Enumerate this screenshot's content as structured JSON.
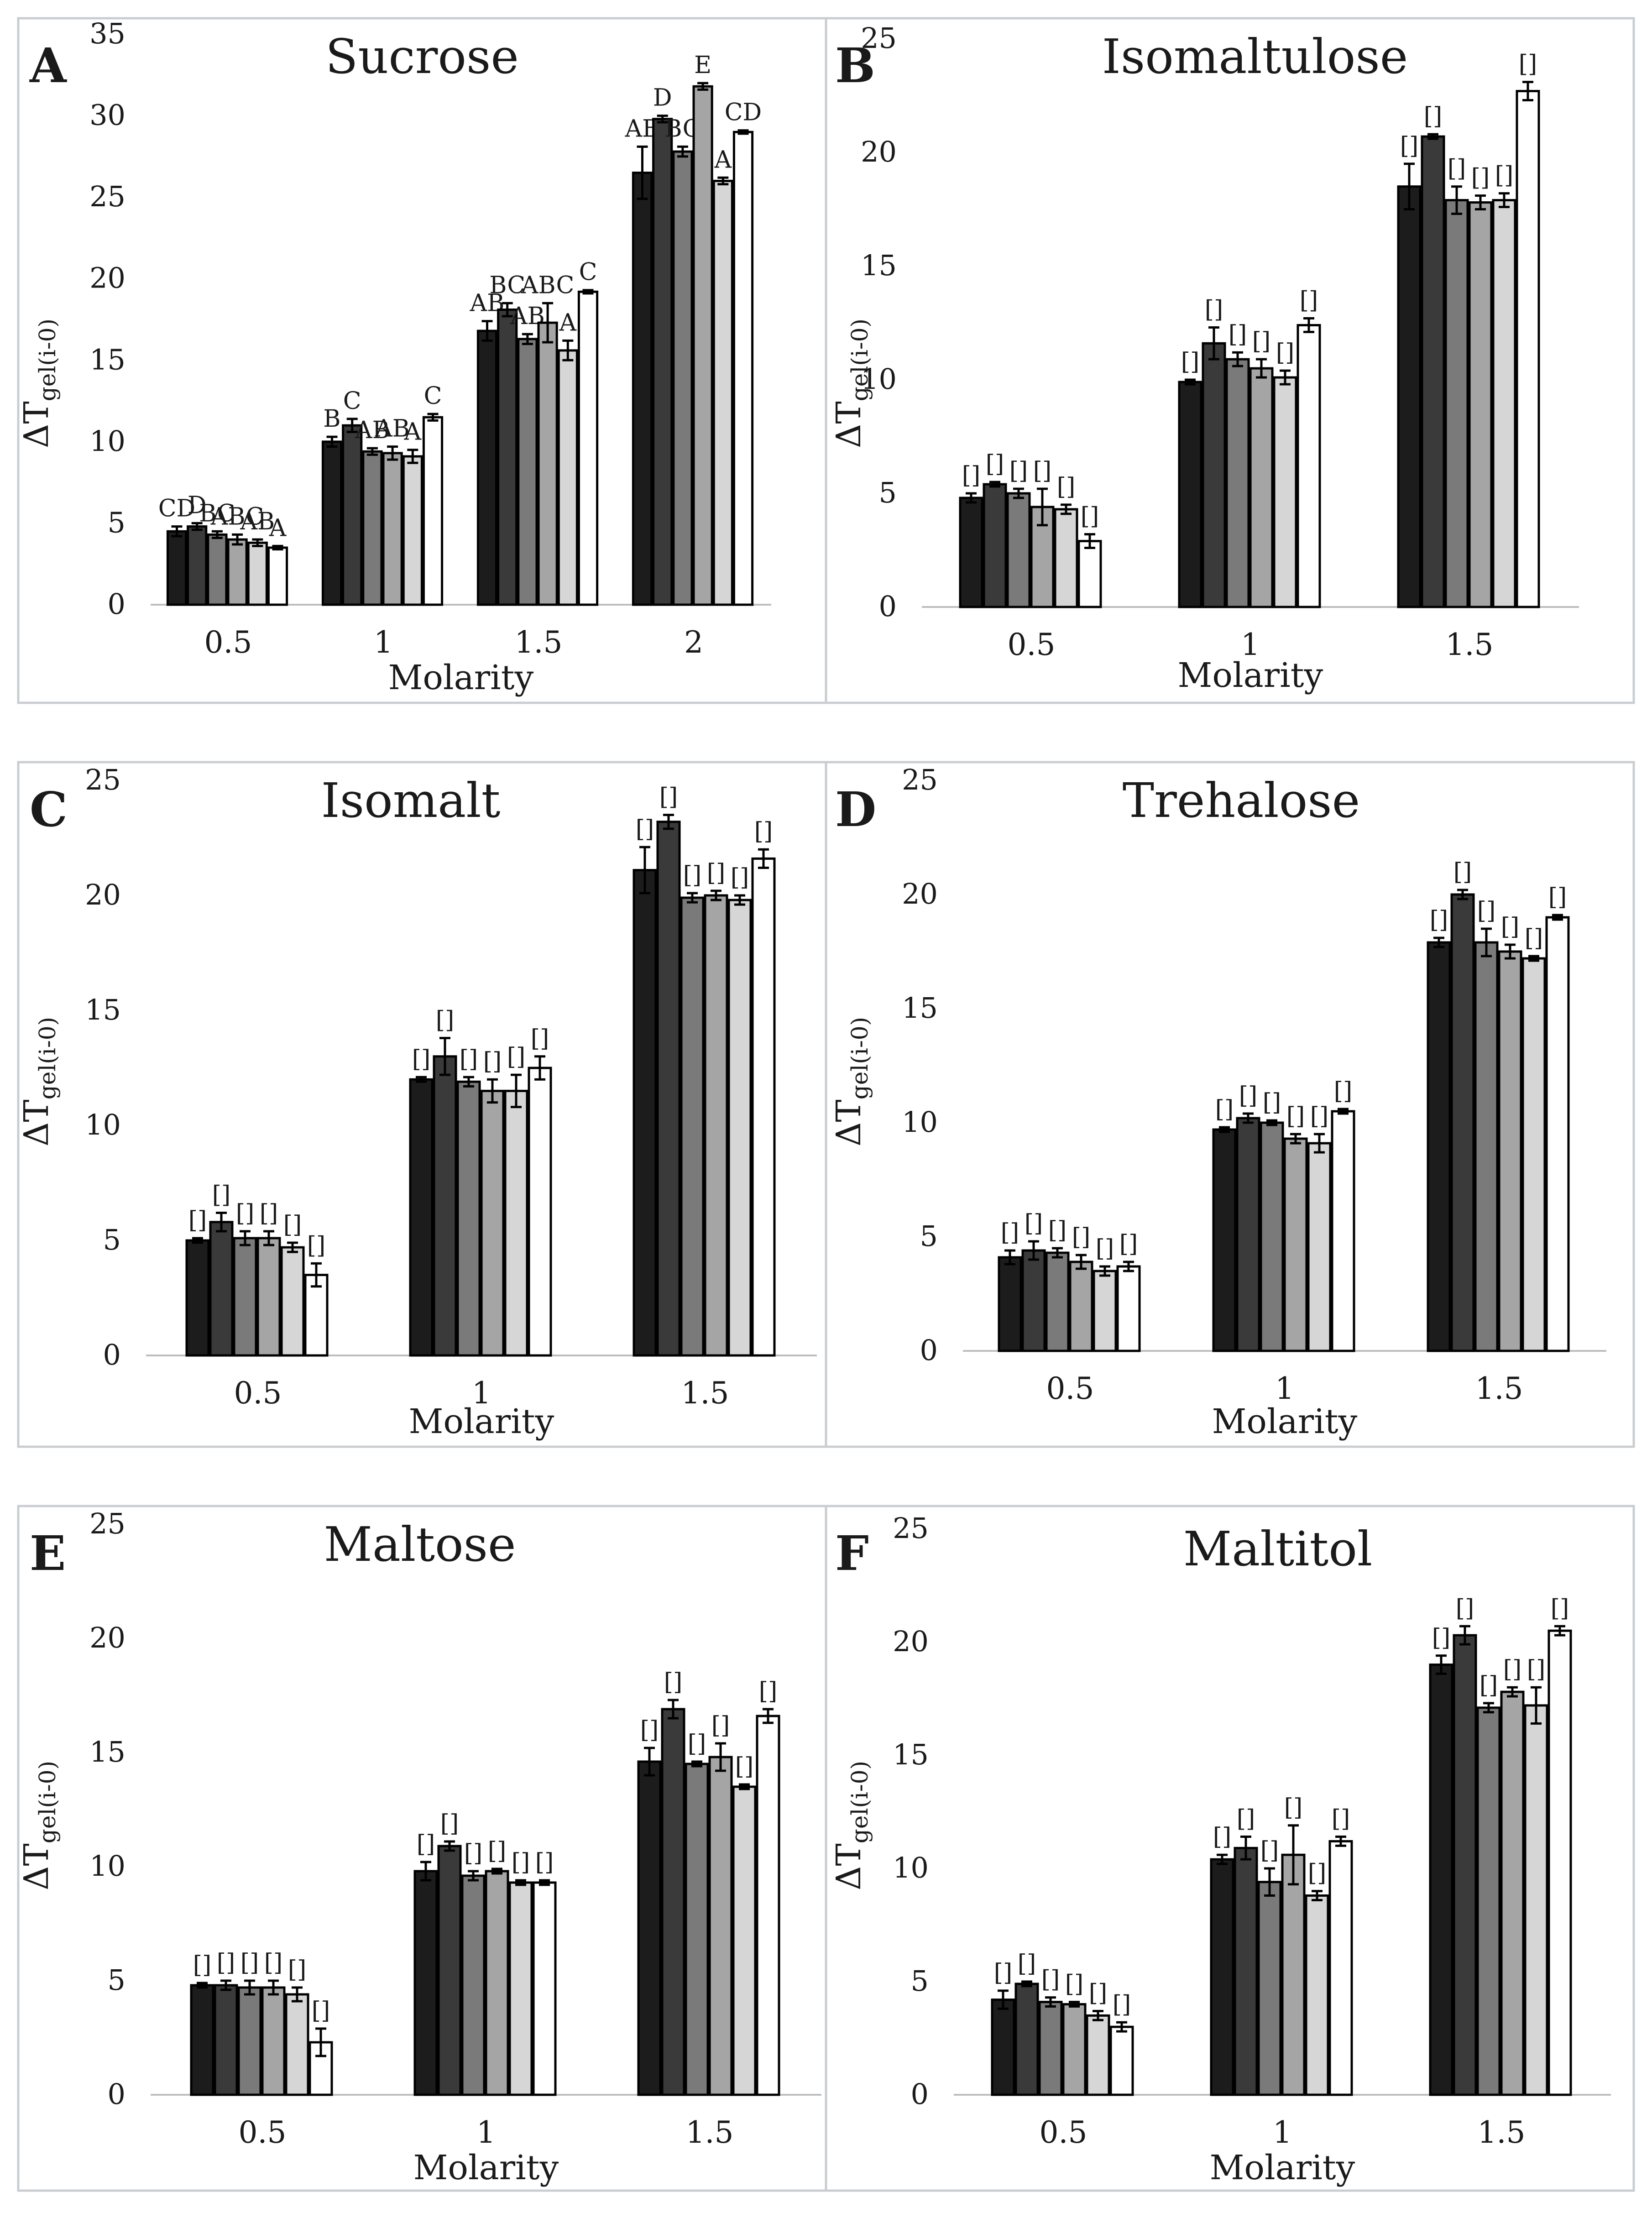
{
  "figure_label": "Composite bar chart figure (6 panels)",
  "colors": {
    "series": [
      "#1c1c1c",
      "#3a3a3a",
      "#7a7a7a",
      "#a5a5a5",
      "#d6d6d6",
      "#ffffff"
    ],
    "bar_outline": "#000000",
    "axis": "#bdbdbd",
    "frame": "#c9cdd2"
  },
  "chart_data": [
    {
      "type": "bar",
      "panel": "A",
      "title": "Sucrose",
      "xlabel": "Molarity",
      "ylabel_main": "ΔT",
      "ylabel_sub": "gel(i-0)",
      "categories": [
        "0.5",
        "1",
        "1.5",
        "2"
      ],
      "yticks": [
        "0",
        "5",
        "10",
        "15",
        "20",
        "25",
        "30",
        "35"
      ],
      "ylim": [
        0,
        35
      ],
      "series": [
        {
          "name": "series 1",
          "values": [
            4.5,
            10.0,
            16.8,
            26.5
          ],
          "errors": [
            0.3,
            0.3,
            0.6,
            1.6
          ]
        },
        {
          "name": "series 2",
          "values": [
            4.8,
            11.0,
            18.1,
            29.8
          ],
          "errors": [
            0.2,
            0.4,
            0.4,
            0.2
          ]
        },
        {
          "name": "series 3",
          "values": [
            4.3,
            9.4,
            16.3,
            27.8
          ],
          "errors": [
            0.2,
            0.2,
            0.3,
            0.3
          ]
        },
        {
          "name": "series 4",
          "values": [
            4.0,
            9.3,
            17.3,
            31.8
          ],
          "errors": [
            0.3,
            0.4,
            1.2,
            0.2
          ]
        },
        {
          "name": "series 5",
          "values": [
            3.8,
            9.1,
            15.6,
            26.0
          ],
          "errors": [
            0.2,
            0.4,
            0.6,
            0.2
          ]
        },
        {
          "name": "series 6",
          "values": [
            3.5,
            11.5,
            19.2,
            29.0
          ],
          "errors": [
            0.1,
            0.2,
            0.1,
            0.1
          ]
        }
      ],
      "significance_labels": [
        [
          "CD",
          "D",
          "BC",
          "ABC",
          "AB",
          "A"
        ],
        [
          "B",
          "C",
          "AB",
          "AB",
          "A",
          "C"
        ],
        [
          "AB",
          "BC",
          "AB",
          "ABC",
          "A",
          "C"
        ],
        [
          "AB",
          "D",
          "BC",
          "E",
          "A",
          "CD"
        ]
      ]
    },
    {
      "type": "bar",
      "panel": "B",
      "title": "Isomaltulose",
      "xlabel": "Molarity",
      "ylabel_main": "ΔT",
      "ylabel_sub": "gel(i-0)",
      "categories": [
        "0.5",
        "1",
        "1.5"
      ],
      "yticks": [
        "0",
        "5",
        "10",
        "15",
        "20",
        "25"
      ],
      "ylim": [
        0,
        25
      ],
      "series": [
        {
          "name": "series 1",
          "values": [
            4.8,
            9.9,
            18.5
          ],
          "errors": [
            0.2,
            0.1,
            1.0
          ]
        },
        {
          "name": "series 2",
          "values": [
            5.4,
            11.6,
            20.7
          ],
          "errors": [
            0.1,
            0.7,
            0.1
          ]
        },
        {
          "name": "series 3",
          "values": [
            5.0,
            10.9,
            17.9
          ],
          "errors": [
            0.2,
            0.3,
            0.6
          ]
        },
        {
          "name": "series 4",
          "values": [
            4.4,
            10.5,
            17.8
          ],
          "errors": [
            0.8,
            0.4,
            0.3
          ]
        },
        {
          "name": "series 5",
          "values": [
            4.3,
            10.1,
            17.9
          ],
          "errors": [
            0.2,
            0.3,
            0.3
          ]
        },
        {
          "name": "series 6",
          "values": [
            2.9,
            12.4,
            22.7
          ],
          "errors": [
            0.3,
            0.3,
            0.4
          ]
        }
      ],
      "significance_labels": [
        [
          "[]",
          "[]",
          "[]",
          "[]",
          "[]",
          "[]"
        ],
        [
          "[]",
          "[]",
          "[]",
          "[]",
          "[]",
          "[]"
        ],
        [
          "[]",
          "[]",
          "[]",
          "[]",
          "[]",
          "[]"
        ]
      ]
    },
    {
      "type": "bar",
      "panel": "C",
      "title": "Isomalt",
      "xlabel": "Molarity",
      "ylabel_main": "ΔT",
      "ylabel_sub": "gel(i-0)",
      "categories": [
        "0.5",
        "1",
        "1.5"
      ],
      "yticks": [
        "0",
        "5",
        "10",
        "15",
        "20",
        "25"
      ],
      "ylim": [
        0,
        25
      ],
      "series": [
        {
          "name": "series 1",
          "values": [
            5.0,
            12.0,
            21.1
          ],
          "errors": [
            0.1,
            0.1,
            1.0
          ]
        },
        {
          "name": "series 2",
          "values": [
            5.8,
            13.0,
            23.2
          ],
          "errors": [
            0.4,
            0.8,
            0.3
          ]
        },
        {
          "name": "series 3",
          "values": [
            5.1,
            11.9,
            19.9
          ],
          "errors": [
            0.3,
            0.2,
            0.2
          ]
        },
        {
          "name": "series 4",
          "values": [
            5.1,
            11.5,
            20.0
          ],
          "errors": [
            0.3,
            0.5,
            0.2
          ]
        },
        {
          "name": "series 5",
          "values": [
            4.7,
            11.5,
            19.8
          ],
          "errors": [
            0.2,
            0.7,
            0.2
          ]
        },
        {
          "name": "series 6",
          "values": [
            3.5,
            12.5,
            21.6
          ],
          "errors": [
            0.5,
            0.5,
            0.4
          ]
        }
      ],
      "significance_labels": [
        [
          "[]",
          "[]",
          "[]",
          "[]",
          "[]",
          "[]"
        ],
        [
          "[]",
          "[]",
          "[]",
          "[]",
          "[]",
          "[]"
        ],
        [
          "[]",
          "[]",
          "[]",
          "[]",
          "[]",
          "[]"
        ]
      ]
    },
    {
      "type": "bar",
      "panel": "D",
      "title": "Trehalose",
      "xlabel": "Molarity",
      "ylabel_main": "ΔT",
      "ylabel_sub": "gel(i-0)",
      "categories": [
        "0.5",
        "1",
        "1.5"
      ],
      "yticks": [
        "0",
        "5",
        "10",
        "15",
        "20",
        "25"
      ],
      "ylim": [
        0,
        25
      ],
      "series": [
        {
          "name": "series 1",
          "values": [
            4.1,
            9.7,
            17.9
          ],
          "errors": [
            0.3,
            0.1,
            0.2
          ]
        },
        {
          "name": "series 2",
          "values": [
            4.4,
            10.2,
            20.0
          ],
          "errors": [
            0.4,
            0.2,
            0.2
          ]
        },
        {
          "name": "series 3",
          "values": [
            4.3,
            10.0,
            17.9
          ],
          "errors": [
            0.2,
            0.1,
            0.6
          ]
        },
        {
          "name": "series 4",
          "values": [
            3.9,
            9.3,
            17.5
          ],
          "errors": [
            0.3,
            0.2,
            0.3
          ]
        },
        {
          "name": "series 5",
          "values": [
            3.5,
            9.1,
            17.2
          ],
          "errors": [
            0.2,
            0.4,
            0.1
          ]
        },
        {
          "name": "series 6",
          "values": [
            3.7,
            10.5,
            19.0
          ],
          "errors": [
            0.2,
            0.1,
            0.1
          ]
        }
      ],
      "significance_labels": [
        [
          "[]",
          "[]",
          "[]",
          "[]",
          "[]",
          "[]"
        ],
        [
          "[]",
          "[]",
          "[]",
          "[]",
          "[]",
          "[]"
        ],
        [
          "[]",
          "[]",
          "[]",
          "[]",
          "[]",
          "[]"
        ]
      ]
    },
    {
      "type": "bar",
      "panel": "E",
      "title": "Maltose",
      "xlabel": "Molarity",
      "ylabel_main": "ΔT",
      "ylabel_sub": "gel(i-0)",
      "categories": [
        "0.5",
        "1",
        "1.5"
      ],
      "yticks": [
        "0",
        "5",
        "10",
        "15",
        "20",
        "25"
      ],
      "ylim": [
        0,
        25
      ],
      "series": [
        {
          "name": "series 1",
          "values": [
            4.8,
            9.8,
            14.6
          ],
          "errors": [
            0.1,
            0.4,
            0.6
          ]
        },
        {
          "name": "series 2",
          "values": [
            4.8,
            10.9,
            16.9
          ],
          "errors": [
            0.2,
            0.2,
            0.4
          ]
        },
        {
          "name": "series 3",
          "values": [
            4.7,
            9.6,
            14.5
          ],
          "errors": [
            0.3,
            0.2,
            0.1
          ]
        },
        {
          "name": "series 4",
          "values": [
            4.7,
            9.8,
            14.8
          ],
          "errors": [
            0.3,
            0.1,
            0.6
          ]
        },
        {
          "name": "series 5",
          "values": [
            4.4,
            9.3,
            13.5
          ],
          "errors": [
            0.3,
            0.1,
            0.1
          ]
        },
        {
          "name": "series 6",
          "values": [
            2.3,
            9.3,
            16.6
          ],
          "errors": [
            0.6,
            0.1,
            0.3
          ]
        }
      ],
      "significance_labels": [
        [
          "[]",
          "[]",
          "[]",
          "[]",
          "[]",
          "[]"
        ],
        [
          "[]",
          "[]",
          "[]",
          "[]",
          "[]",
          "[]"
        ],
        [
          "[]",
          "[]",
          "[]",
          "[]",
          "[]",
          "[]"
        ]
      ]
    },
    {
      "type": "bar",
      "panel": "F",
      "title": "Maltitol",
      "xlabel": "Molarity",
      "ylabel_main": "ΔT",
      "ylabel_sub": "gel(i-0)",
      "categories": [
        "0.5",
        "1",
        "1.5"
      ],
      "yticks": [
        "0",
        "5",
        "10",
        "15",
        "20",
        "25"
      ],
      "ylim": [
        0,
        25
      ],
      "series": [
        {
          "name": "series 1",
          "values": [
            4.2,
            10.4,
            19.0
          ],
          "errors": [
            0.4,
            0.2,
            0.4
          ]
        },
        {
          "name": "series 2",
          "values": [
            4.9,
            10.9,
            20.3
          ],
          "errors": [
            0.1,
            0.5,
            0.4
          ]
        },
        {
          "name": "series 3",
          "values": [
            4.1,
            9.4,
            17.1
          ],
          "errors": [
            0.2,
            0.6,
            0.2
          ]
        },
        {
          "name": "series 4",
          "values": [
            4.0,
            10.6,
            17.8
          ],
          "errors": [
            0.1,
            1.3,
            0.2
          ]
        },
        {
          "name": "series 5",
          "values": [
            3.5,
            8.8,
            17.2
          ],
          "errors": [
            0.2,
            0.2,
            0.8
          ]
        },
        {
          "name": "series 6",
          "values": [
            3.0,
            11.2,
            20.5
          ],
          "errors": [
            0.2,
            0.2,
            0.2
          ]
        }
      ],
      "significance_labels": [
        [
          "[]",
          "[]",
          "[]",
          "[]",
          "[]",
          "[]"
        ],
        [
          "[]",
          "[]",
          "[]",
          "[]",
          "[]",
          "[]"
        ],
        [
          "[]",
          "[]",
          "[]",
          "[]",
          "[]",
          "[]"
        ]
      ]
    }
  ]
}
